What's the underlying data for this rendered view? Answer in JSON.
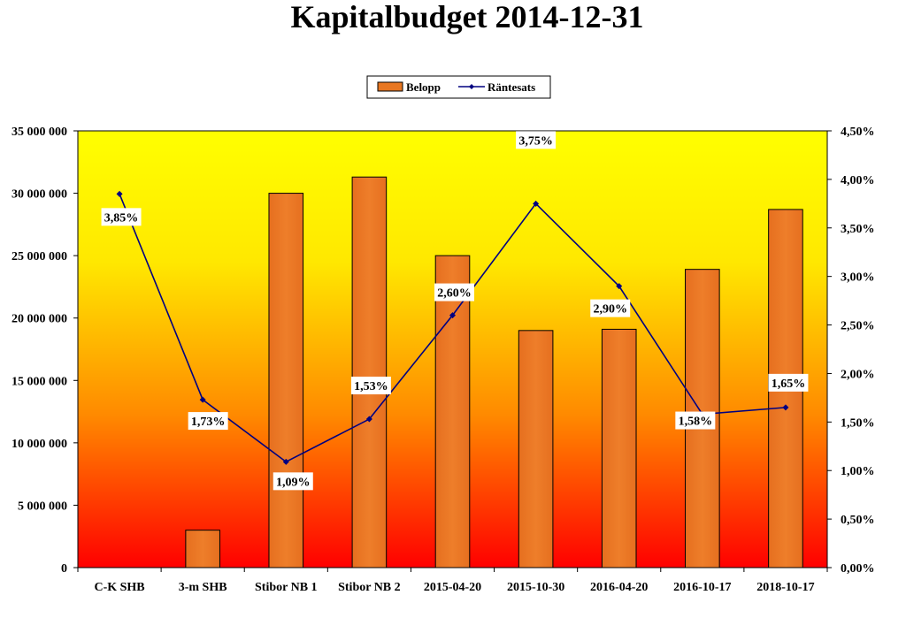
{
  "chart_data": {
    "type": "bar+line",
    "title": "Kapitalbudget 2014-12-31",
    "categories": [
      "C-K SHB",
      "3-m SHB",
      "Stibor NB 1",
      "Stibor NB 2",
      "2015-04-20",
      "2015-10-30",
      "2016-04-20",
      "2016-10-17",
      "2018-10-17"
    ],
    "series": [
      {
        "name": "Belopp",
        "type": "bar",
        "axis": "left",
        "color": "#E87722",
        "values": [
          0,
          3000000,
          30000000,
          31300000,
          25000000,
          19000000,
          19100000,
          23900000,
          28700000
        ]
      },
      {
        "name": "Räntesats",
        "type": "line",
        "axis": "right",
        "color": "#000080",
        "values": [
          3.85,
          1.73,
          1.09,
          1.53,
          2.6,
          3.75,
          2.9,
          1.58,
          1.65
        ],
        "labels": [
          "3,85%",
          "1,73%",
          "1,09%",
          "1,53%",
          "2,60%",
          "3,75%",
          "2,90%",
          "1,58%",
          "1,65%"
        ]
      }
    ],
    "y_left": {
      "range": [
        0,
        35000000
      ],
      "ticks": [
        0,
        5000000,
        10000000,
        15000000,
        20000000,
        25000000,
        30000000,
        35000000
      ],
      "tick_labels": [
        "0",
        "5 000 000",
        "10 000 000",
        "15 000 000",
        "20 000 000",
        "25 000 000",
        "30 000 000",
        "35 000 000"
      ]
    },
    "y_right": {
      "range": [
        0,
        4.5
      ],
      "ticks": [
        0,
        0.5,
        1.0,
        1.5,
        2.0,
        2.5,
        3.0,
        3.5,
        4.0,
        4.5
      ],
      "tick_labels": [
        "0,00%",
        "0,50%",
        "1,00%",
        "1,50%",
        "2,00%",
        "2,50%",
        "3,00%",
        "3,50%",
        "4,00%",
        "4,50%"
      ]
    },
    "legend": {
      "placement": "top-center",
      "entries": [
        "Belopp",
        "Räntesats"
      ]
    },
    "grid": false,
    "background_gradient": [
      "#FFFF00",
      "#FF0000"
    ]
  }
}
